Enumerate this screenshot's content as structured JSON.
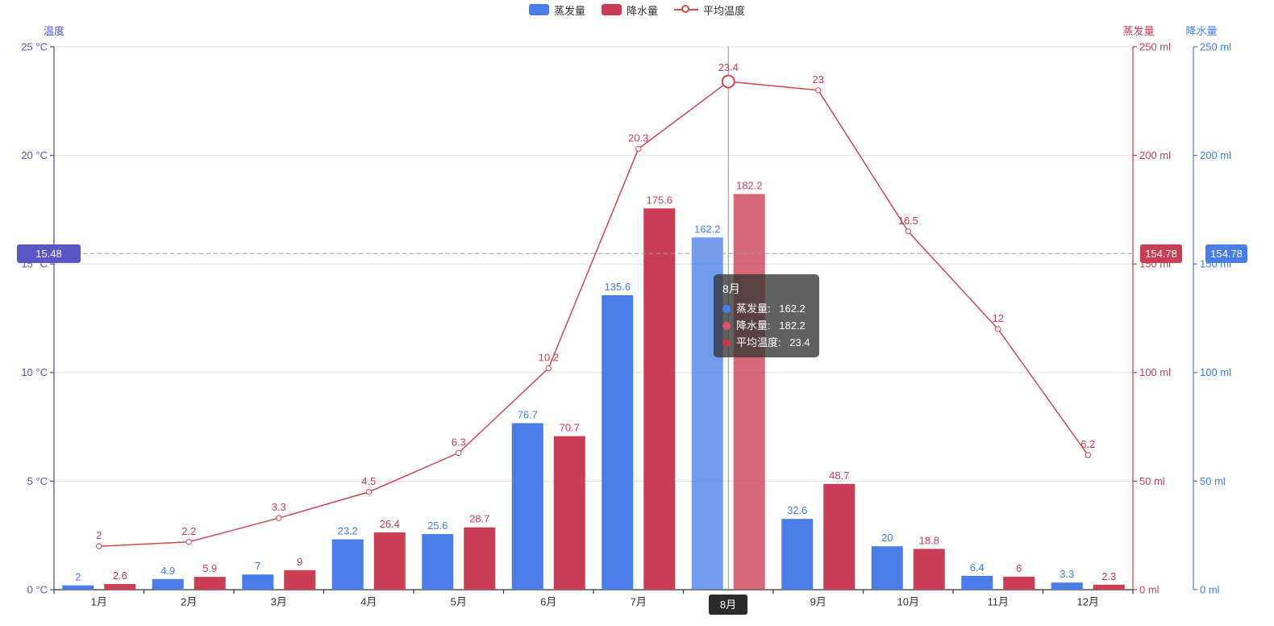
{
  "legend": {
    "items": [
      {
        "label": "蒸发量",
        "symbol": "bar",
        "color": "#4a7de8"
      },
      {
        "label": "降水量",
        "symbol": "bar",
        "color": "#c93e53"
      },
      {
        "label": "平均温度",
        "symbol": "line",
        "color": "#d0494f"
      }
    ]
  },
  "chart_data": {
    "type": "bar",
    "combo": "two bar series on ml axis + one line series on temperature axis",
    "categories": [
      "1月",
      "2月",
      "3月",
      "4月",
      "5月",
      "6月",
      "7月",
      "8月",
      "9月",
      "10月",
      "11月",
      "12月"
    ],
    "series": [
      {
        "name": "蒸发量",
        "chart_type": "bar",
        "axis": "ml",
        "color": "#4a7de8",
        "label_color": "#3f7df2",
        "values": [
          2,
          4.9,
          7,
          23.2,
          25.6,
          76.7,
          135.6,
          162.2,
          32.6,
          20,
          6.4,
          3.3
        ]
      },
      {
        "name": "降水量",
        "chart_type": "bar",
        "axis": "ml",
        "color": "#c93e53",
        "label_color": "#d03c50",
        "values": [
          2.6,
          5.9,
          9,
          26.4,
          28.7,
          70.7,
          175.6,
          182.2,
          48.7,
          18.8,
          6,
          2.3
        ]
      },
      {
        "name": "平均温度",
        "chart_type": "line",
        "axis": "temp",
        "color": "#d0494f",
        "label_color": "#d03c50",
        "values": [
          2,
          2.2,
          3.3,
          4.5,
          6.3,
          10.2,
          20.3,
          23.4,
          23,
          16.5,
          12,
          6.2
        ]
      }
    ],
    "y_axes": [
      {
        "name": "温度",
        "position": "left",
        "unit": "°C",
        "min": 0,
        "max": 25,
        "step": 5,
        "label_color": "#5653c1",
        "line_color": "#4a4886"
      },
      {
        "name": "蒸发量",
        "position": "right",
        "unit": "ml",
        "min": 0,
        "max": 250,
        "step": 50,
        "label_color": "#c83e53",
        "line_color": "#c23a4f"
      },
      {
        "name": "降水量",
        "position": "right-offset",
        "unit": "ml",
        "min": 0,
        "max": 250,
        "step": 50,
        "label_color": "#3f7df2",
        "line_color": "#4a7de8"
      }
    ],
    "x_axis": {
      "label_color": "#333333",
      "line_color": "#333333"
    },
    "grid": true,
    "legend_position": "top",
    "marklines": [
      {
        "label": "15.48",
        "axis": "temp",
        "value": 15.48,
        "badge_color": "#5a56c6"
      },
      {
        "label": "154.78",
        "axis": "ml",
        "value": 154.78,
        "badge_color": "#c93e53"
      },
      {
        "label": "154.78",
        "axis": "ml",
        "value": 154.78,
        "badge_color": "#4a7de8"
      }
    ],
    "highlight": {
      "category_index": 7,
      "label": "8月"
    }
  },
  "tooltip": {
    "title": "8月",
    "rows": [
      {
        "label": "蒸发量",
        "value": "162.2",
        "marker_color": "#4a7de8"
      },
      {
        "label": "降水量",
        "value": "182.2",
        "marker_color": "#e0506d"
      },
      {
        "label": "平均温度",
        "value": "23.4",
        "marker_color": "#c23a49"
      }
    ]
  }
}
